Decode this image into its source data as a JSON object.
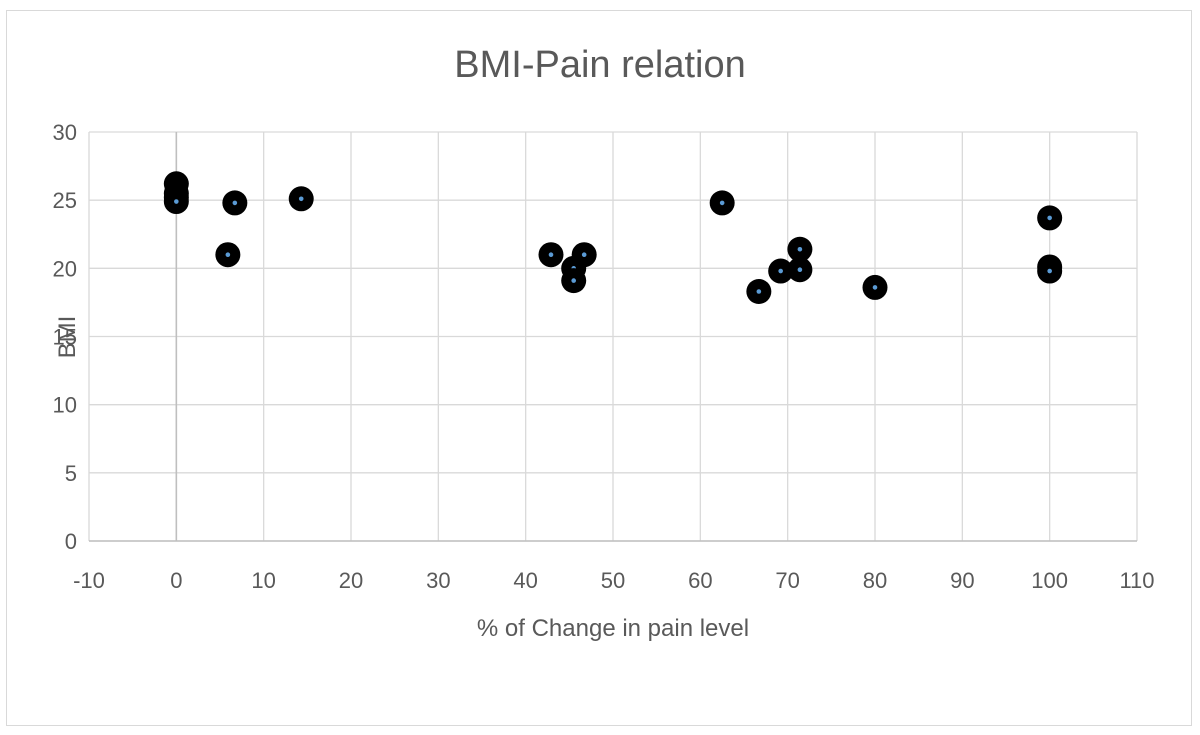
{
  "chart_data": {
    "type": "scatter",
    "title": "BMI-Pain relation",
    "xlabel": "% of Change in pain level",
    "ylabel": "BMI",
    "xlim": [
      -10,
      110
    ],
    "ylim": [
      0,
      30
    ],
    "xticks": [
      "-10",
      "0",
      "10",
      "20",
      "30",
      "40",
      "50",
      "60",
      "70",
      "80",
      "90",
      "100",
      "110"
    ],
    "yticks": [
      "0",
      "5",
      "10",
      "15",
      "20",
      "25",
      "30"
    ],
    "grid": true,
    "legend": "none",
    "marker_color": "#000000",
    "marker_center_color": "#5b9bd5",
    "points": [
      {
        "x": 0,
        "y": 26.2
      },
      {
        "x": 0,
        "y": 25.5
      },
      {
        "x": 0,
        "y": 25.2
      },
      {
        "x": 0,
        "y": 24.9
      },
      {
        "x": 5.9,
        "y": 21.0
      },
      {
        "x": 6.7,
        "y": 24.8
      },
      {
        "x": 14.3,
        "y": 25.1
      },
      {
        "x": 42.9,
        "y": 21.0
      },
      {
        "x": 45.5,
        "y": 20.0
      },
      {
        "x": 45.5,
        "y": 19.1
      },
      {
        "x": 46.7,
        "y": 21.0
      },
      {
        "x": 62.5,
        "y": 24.8
      },
      {
        "x": 66.7,
        "y": 18.3
      },
      {
        "x": 69.2,
        "y": 19.8
      },
      {
        "x": 71.4,
        "y": 21.4
      },
      {
        "x": 71.4,
        "y": 19.9
      },
      {
        "x": 80.0,
        "y": 18.6
      },
      {
        "x": 100,
        "y": 23.7
      },
      {
        "x": 100,
        "y": 20.1
      },
      {
        "x": 100,
        "y": 19.8
      }
    ]
  }
}
